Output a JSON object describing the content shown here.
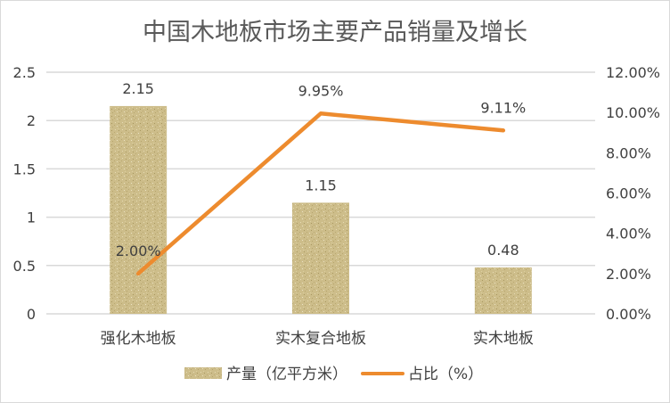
{
  "chart_data": {
    "type": "bar+line",
    "title": "中国木地板市场主要产品销量及增长",
    "categories": [
      "强化木地板",
      "实木复合地板",
      "实木地板"
    ],
    "series": [
      {
        "name": "产量（亿平方米）",
        "type": "bar",
        "axis": "left",
        "values": [
          2.15,
          1.15,
          0.48
        ],
        "labels": [
          "2.15",
          "1.15",
          "0.48"
        ],
        "color": "#cdbd8a"
      },
      {
        "name": "占比（%）",
        "type": "line",
        "axis": "right",
        "values": [
          2.0,
          9.95,
          9.11
        ],
        "labels": [
          "2.00%",
          "9.95%",
          "9.11%"
        ],
        "color": "#ed8b2e"
      }
    ],
    "y_left": {
      "range": [
        0,
        2.5
      ],
      "ticks": [
        "0",
        "0.5",
        "1",
        "1.5",
        "2",
        "2.5"
      ]
    },
    "y_right": {
      "range": [
        0,
        12
      ],
      "ticks": [
        "0.00%",
        "2.00%",
        "4.00%",
        "6.00%",
        "8.00%",
        "10.00%",
        "12.00%"
      ]
    },
    "grid": true,
    "legend_position": "bottom"
  }
}
